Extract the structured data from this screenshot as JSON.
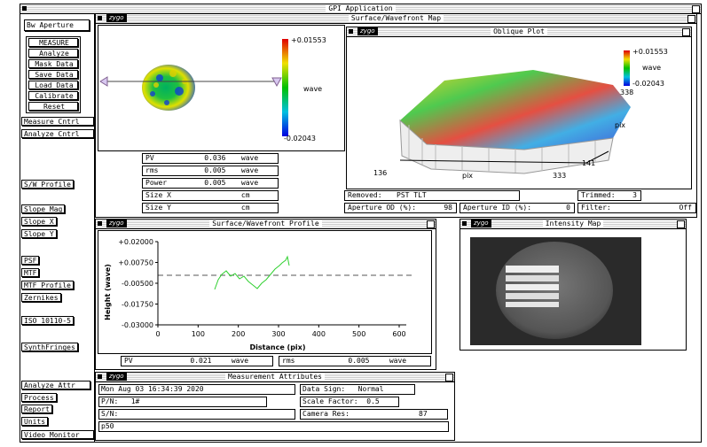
{
  "window_title": "GPI Application",
  "logo": "zygo",
  "sidebar": {
    "top": "Bw Aperture",
    "group": [
      "MEASURE",
      "Analyze",
      "Mask Data",
      "Save Data",
      "Load Data",
      "Calibrate",
      "Reset"
    ],
    "buttons": [
      "Measure Cntrl",
      "Analyze Cntrl",
      "S/W Profile",
      "Slope Mag",
      "Slope X",
      "Slope Y",
      "PSF",
      "MTF",
      "MTF Profile",
      "Zernikes",
      "ISO 10110-5",
      "SynthFringes",
      "Analyze Attr",
      "Process",
      "Report",
      "Units",
      "Video Monitor"
    ]
  },
  "surface_map": {
    "title": "Surface/Wavefront Map",
    "colorbar": {
      "max": "+0.01553",
      "unit": "wave",
      "min": "-0.02043"
    },
    "stats": [
      {
        "label": "PV",
        "value": "0.036",
        "unit": "wave"
      },
      {
        "label": "rms",
        "value": "0.005",
        "unit": "wave"
      },
      {
        "label": "Power",
        "value": "0.005",
        "unit": "wave"
      },
      {
        "label": "Size X",
        "value": "",
        "unit": "cm"
      },
      {
        "label": "Size Y",
        "value": "",
        "unit": "cm"
      }
    ]
  },
  "oblique_plot": {
    "title": "Oblique Plot",
    "colorbar": {
      "max": "+0.01553",
      "unit": "wave",
      "min": "-0.02043"
    },
    "y_axis": {
      "top": "338",
      "label": "pix",
      "bottom": "141"
    },
    "x_axis": {
      "left": "136",
      "label": "pix",
      "right": "333"
    }
  },
  "fields": {
    "removed": {
      "label": "Removed:",
      "value": "PST TLT"
    },
    "trimmed": {
      "label": "Trimmed:",
      "value": "3"
    },
    "aperture_od": {
      "label": "Aperture OD (%):",
      "value": "98"
    },
    "aperture_id": {
      "label": "Aperture ID (%):",
      "value": "0"
    },
    "filter": {
      "label": "Filter:",
      "value": "Off"
    }
  },
  "profile": {
    "title": "Surface/Wavefront Profile",
    "y_label": "Height (wave)",
    "x_label": "Distance (pix)",
    "yticks": [
      "+0.02000",
      "+0.00750",
      "-0.00500",
      "-0.01750",
      "-0.03000"
    ],
    "xticks": [
      "0",
      "100",
      "200",
      "300",
      "400",
      "500",
      "600"
    ],
    "stats": [
      {
        "label": "PV",
        "value": "0.021",
        "unit": "wave"
      },
      {
        "label": "rms",
        "value": "0.005",
        "unit": "wave"
      }
    ]
  },
  "intensity_map": {
    "title": "Intensity Map"
  },
  "measurement_attributes": {
    "title": "Measurement Attributes",
    "date": "Mon Aug 03 16:34:39 2020",
    "pn_label": "P/N:",
    "pn_value": "1#",
    "sn_label": "S/N:",
    "note": "p50",
    "data_sign_label": "Data Sign:",
    "data_sign_value": "Normal",
    "scale_label": "Scale Factor:",
    "scale_value": "0.5",
    "camera_label": "Camera Res:",
    "camera_value": "87"
  }
}
